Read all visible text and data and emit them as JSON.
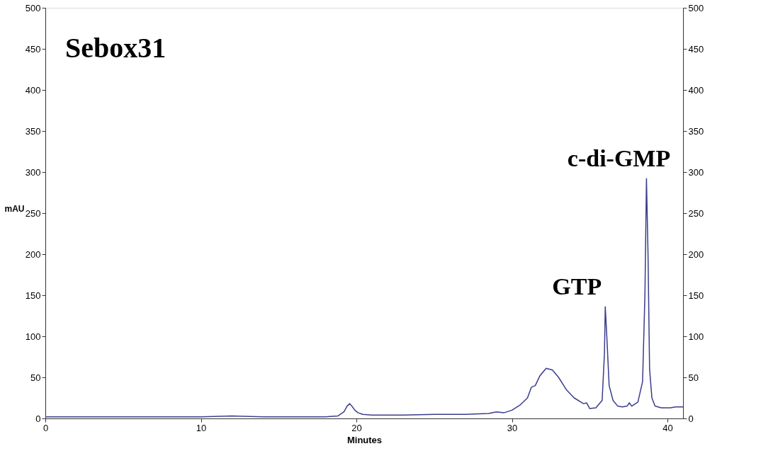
{
  "chart_data": {
    "type": "line",
    "xlabel": "Minutes",
    "ylabel": "mAU",
    "x": [
      0,
      2,
      4,
      6,
      8,
      10,
      12,
      14,
      16,
      18,
      18.8,
      19.2,
      19.4,
      19.57,
      19.75,
      19.9,
      20.1,
      20.4,
      21,
      23,
      25,
      27,
      28.5,
      29,
      29.5,
      30,
      30.5,
      31,
      31.25,
      31.5,
      31.8,
      32.2,
      32.6,
      33,
      33.5,
      34,
      34.6,
      34.8,
      35.0,
      35.4,
      35.8,
      35.95,
      36.0,
      36.1,
      36.25,
      36.5,
      36.8,
      37.1,
      37.4,
      37.55,
      37.7,
      38.1,
      38.4,
      38.55,
      38.65,
      38.75,
      38.85,
      39.0,
      39.2,
      39.6,
      40.2,
      40.5,
      41
    ],
    "series": [
      {
        "color": "#3c3c8c",
        "values": [
          2,
          2,
          2,
          2,
          2,
          2,
          3,
          2,
          2,
          2,
          3,
          8,
          15,
          18,
          14,
          10,
          7,
          5,
          4,
          4,
          5,
          5,
          6,
          8,
          7,
          10,
          16,
          25,
          38,
          40,
          52,
          61,
          59,
          50,
          35,
          25,
          18,
          19,
          12,
          13,
          22,
          80,
          136,
          100,
          40,
          22,
          15,
          14,
          15,
          19,
          15,
          20,
          45,
          150,
          292,
          200,
          60,
          25,
          15,
          13,
          13,
          14,
          14
        ]
      }
    ],
    "xlim": [
      0,
      41
    ],
    "xticks": [
      0,
      10,
      20,
      30,
      40
    ],
    "ylim": [
      0,
      500
    ],
    "yticks": [
      0,
      50,
      100,
      150,
      200,
      250,
      300,
      350,
      400,
      450,
      500
    ],
    "y2lim": [
      0,
      500
    ],
    "y2ticks": [
      0,
      50,
      100,
      150,
      200,
      250,
      300,
      350,
      400,
      450,
      500
    ],
    "grid": false,
    "annotations": [
      "Sebox31",
      {
        "text": "GTP",
        "x": 36.0,
        "y": 136
      },
      {
        "text": "c-di-GMP",
        "x": 38.7,
        "y": 292
      }
    ]
  }
}
